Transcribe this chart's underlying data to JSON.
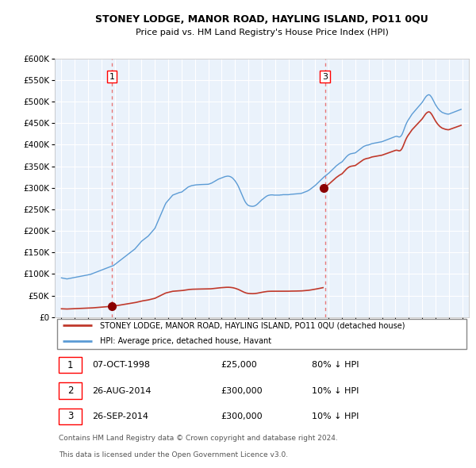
{
  "title": "STONEY LODGE, MANOR ROAD, HAYLING ISLAND, PO11 0QU",
  "subtitle": "Price paid vs. HM Land Registry's House Price Index (HPI)",
  "legend_line1": "STONEY LODGE, MANOR ROAD, HAYLING ISLAND, PO11 0QU (detached house)",
  "legend_line2": "HPI: Average price, detached house, Havant",
  "transactions": [
    {
      "num": 1,
      "date": "07-OCT-1998",
      "price": 25000,
      "x": 1998.77,
      "pct": "80% ↓ HPI"
    },
    {
      "num": 2,
      "date": "26-AUG-2014",
      "price": 300000,
      "x": 2014.65,
      "pct": "10% ↓ HPI"
    },
    {
      "num": 3,
      "date": "26-SEP-2014",
      "price": 300000,
      "x": 2014.73,
      "pct": "10% ↓ HPI"
    }
  ],
  "hpi_color": "#5B9BD5",
  "price_color": "#C0392B",
  "vline_color": "#E87878",
  "dot_color": "#8B0000",
  "background_color": "#FFFFFF",
  "chart_bg_color": "#EAF2FB",
  "grid_color": "#FFFFFF",
  "ylim": [
    0,
    600000
  ],
  "xlim": [
    1994.5,
    2025.5
  ],
  "yticks": [
    0,
    50000,
    100000,
    150000,
    200000,
    250000,
    300000,
    350000,
    400000,
    450000,
    500000,
    550000,
    600000
  ],
  "xticks": [
    1995,
    1996,
    1997,
    1998,
    1999,
    2000,
    2001,
    2002,
    2003,
    2004,
    2005,
    2006,
    2007,
    2008,
    2009,
    2010,
    2011,
    2012,
    2013,
    2014,
    2015,
    2016,
    2017,
    2018,
    2019,
    2020,
    2021,
    2022,
    2023,
    2024,
    2025
  ],
  "footer1": "Contains HM Land Registry data © Crown copyright and database right 2024.",
  "footer2": "This data is licensed under the Open Government Licence v3.0.",
  "hpi_data_monthly": [
    [
      1995.0,
      91000
    ],
    [
      1995.083,
      90500
    ],
    [
      1995.167,
      90000
    ],
    [
      1995.25,
      89500
    ],
    [
      1995.333,
      89000
    ],
    [
      1995.417,
      88500
    ],
    [
      1995.5,
      89000
    ],
    [
      1995.583,
      89500
    ],
    [
      1995.667,
      90000
    ],
    [
      1995.75,
      90500
    ],
    [
      1995.833,
      91000
    ],
    [
      1995.917,
      91500
    ],
    [
      1996.0,
      92000
    ],
    [
      1996.083,
      92500
    ],
    [
      1996.167,
      93000
    ],
    [
      1996.25,
      93500
    ],
    [
      1996.333,
      94000
    ],
    [
      1996.417,
      94500
    ],
    [
      1996.5,
      95000
    ],
    [
      1996.583,
      95500
    ],
    [
      1996.667,
      96000
    ],
    [
      1996.75,
      96500
    ],
    [
      1996.833,
      97000
    ],
    [
      1996.917,
      97500
    ],
    [
      1997.0,
      98000
    ],
    [
      1997.083,
      98500
    ],
    [
      1997.167,
      99000
    ],
    [
      1997.25,
      100000
    ],
    [
      1997.333,
      101000
    ],
    [
      1997.417,
      102000
    ],
    [
      1997.5,
      103000
    ],
    [
      1997.583,
      104000
    ],
    [
      1997.667,
      105000
    ],
    [
      1997.75,
      106000
    ],
    [
      1997.833,
      107000
    ],
    [
      1997.917,
      108000
    ],
    [
      1998.0,
      109000
    ],
    [
      1998.083,
      110000
    ],
    [
      1998.167,
      111000
    ],
    [
      1998.25,
      112000
    ],
    [
      1998.333,
      113000
    ],
    [
      1998.417,
      114000
    ],
    [
      1998.5,
      115000
    ],
    [
      1998.583,
      116000
    ],
    [
      1998.667,
      117000
    ],
    [
      1998.75,
      118000
    ],
    [
      1998.833,
      119000
    ],
    [
      1998.917,
      120000
    ],
    [
      1999.0,
      122000
    ],
    [
      1999.083,
      124000
    ],
    [
      1999.167,
      126000
    ],
    [
      1999.25,
      128000
    ],
    [
      1999.333,
      130000
    ],
    [
      1999.417,
      132000
    ],
    [
      1999.5,
      134000
    ],
    [
      1999.583,
      136000
    ],
    [
      1999.667,
      138000
    ],
    [
      1999.75,
      140000
    ],
    [
      1999.833,
      142000
    ],
    [
      1999.917,
      144000
    ],
    [
      2000.0,
      146000
    ],
    [
      2000.083,
      148000
    ],
    [
      2000.167,
      150000
    ],
    [
      2000.25,
      152000
    ],
    [
      2000.333,
      154000
    ],
    [
      2000.417,
      156000
    ],
    [
      2000.5,
      158000
    ],
    [
      2000.583,
      161000
    ],
    [
      2000.667,
      164000
    ],
    [
      2000.75,
      167000
    ],
    [
      2000.833,
      170000
    ],
    [
      2000.917,
      173000
    ],
    [
      2001.0,
      176000
    ],
    [
      2001.083,
      178000
    ],
    [
      2001.167,
      180000
    ],
    [
      2001.25,
      182000
    ],
    [
      2001.333,
      184000
    ],
    [
      2001.417,
      186000
    ],
    [
      2001.5,
      188000
    ],
    [
      2001.583,
      191000
    ],
    [
      2001.667,
      194000
    ],
    [
      2001.75,
      197000
    ],
    [
      2001.833,
      200000
    ],
    [
      2001.917,
      203000
    ],
    [
      2002.0,
      206000
    ],
    [
      2002.083,
      212000
    ],
    [
      2002.167,
      218000
    ],
    [
      2002.25,
      224000
    ],
    [
      2002.333,
      230000
    ],
    [
      2002.417,
      236000
    ],
    [
      2002.5,
      242000
    ],
    [
      2002.583,
      248000
    ],
    [
      2002.667,
      254000
    ],
    [
      2002.75,
      260000
    ],
    [
      2002.833,
      265000
    ],
    [
      2002.917,
      268000
    ],
    [
      2003.0,
      271000
    ],
    [
      2003.083,
      274000
    ],
    [
      2003.167,
      277000
    ],
    [
      2003.25,
      280000
    ],
    [
      2003.333,
      283000
    ],
    [
      2003.417,
      284000
    ],
    [
      2003.5,
      285000
    ],
    [
      2003.583,
      286000
    ],
    [
      2003.667,
      287000
    ],
    [
      2003.75,
      288000
    ],
    [
      2003.833,
      289000
    ],
    [
      2003.917,
      289500
    ],
    [
      2004.0,
      290000
    ],
    [
      2004.083,
      292000
    ],
    [
      2004.167,
      294000
    ],
    [
      2004.25,
      296000
    ],
    [
      2004.333,
      298000
    ],
    [
      2004.417,
      300000
    ],
    [
      2004.5,
      302000
    ],
    [
      2004.583,
      303000
    ],
    [
      2004.667,
      304000
    ],
    [
      2004.75,
      305000
    ],
    [
      2004.833,
      305500
    ],
    [
      2004.917,
      306000
    ],
    [
      2005.0,
      306500
    ],
    [
      2005.083,
      306800
    ],
    [
      2005.167,
      307000
    ],
    [
      2005.25,
      307200
    ],
    [
      2005.333,
      307400
    ],
    [
      2005.417,
      307500
    ],
    [
      2005.5,
      307600
    ],
    [
      2005.583,
      307700
    ],
    [
      2005.667,
      307800
    ],
    [
      2005.75,
      307900
    ],
    [
      2005.833,
      308000
    ],
    [
      2005.917,
      308100
    ],
    [
      2006.0,
      308200
    ],
    [
      2006.083,
      309000
    ],
    [
      2006.167,
      310000
    ],
    [
      2006.25,
      311000
    ],
    [
      2006.333,
      312500
    ],
    [
      2006.417,
      314000
    ],
    [
      2006.5,
      315500
    ],
    [
      2006.583,
      317000
    ],
    [
      2006.667,
      318500
    ],
    [
      2006.75,
      320000
    ],
    [
      2006.833,
      321000
    ],
    [
      2006.917,
      322000
    ],
    [
      2007.0,
      323000
    ],
    [
      2007.083,
      324000
    ],
    [
      2007.167,
      325000
    ],
    [
      2007.25,
      326000
    ],
    [
      2007.333,
      326500
    ],
    [
      2007.417,
      327000
    ],
    [
      2007.5,
      327000
    ],
    [
      2007.583,
      326500
    ],
    [
      2007.667,
      325500
    ],
    [
      2007.75,
      324000
    ],
    [
      2007.833,
      322000
    ],
    [
      2007.917,
      319000
    ],
    [
      2008.0,
      316000
    ],
    [
      2008.083,
      312000
    ],
    [
      2008.167,
      308000
    ],
    [
      2008.25,
      303000
    ],
    [
      2008.333,
      297000
    ],
    [
      2008.417,
      291000
    ],
    [
      2008.5,
      285000
    ],
    [
      2008.583,
      279000
    ],
    [
      2008.667,
      273000
    ],
    [
      2008.75,
      268000
    ],
    [
      2008.833,
      264000
    ],
    [
      2008.917,
      261000
    ],
    [
      2009.0,
      259000
    ],
    [
      2009.083,
      258000
    ],
    [
      2009.167,
      257500
    ],
    [
      2009.25,
      257000
    ],
    [
      2009.333,
      257000
    ],
    [
      2009.417,
      257500
    ],
    [
      2009.5,
      258500
    ],
    [
      2009.583,
      260000
    ],
    [
      2009.667,
      262000
    ],
    [
      2009.75,
      264500
    ],
    [
      2009.833,
      267000
    ],
    [
      2009.917,
      269500
    ],
    [
      2010.0,
      272000
    ],
    [
      2010.083,
      274000
    ],
    [
      2010.167,
      276000
    ],
    [
      2010.25,
      278000
    ],
    [
      2010.333,
      280000
    ],
    [
      2010.417,
      281500
    ],
    [
      2010.5,
      282500
    ],
    [
      2010.583,
      283000
    ],
    [
      2010.667,
      283500
    ],
    [
      2010.75,
      283500
    ],
    [
      2010.833,
      283500
    ],
    [
      2010.917,
      283000
    ],
    [
      2011.0,
      283000
    ],
    [
      2011.083,
      283000
    ],
    [
      2011.167,
      283000
    ],
    [
      2011.25,
      283000
    ],
    [
      2011.333,
      283000
    ],
    [
      2011.417,
      283500
    ],
    [
      2011.5,
      283500
    ],
    [
      2011.583,
      284000
    ],
    [
      2011.667,
      284000
    ],
    [
      2011.75,
      284000
    ],
    [
      2011.833,
      284000
    ],
    [
      2011.917,
      284000
    ],
    [
      2012.0,
      284000
    ],
    [
      2012.083,
      284500
    ],
    [
      2012.167,
      284800
    ],
    [
      2012.25,
      285000
    ],
    [
      2012.333,
      285000
    ],
    [
      2012.417,
      285200
    ],
    [
      2012.5,
      285500
    ],
    [
      2012.583,
      285700
    ],
    [
      2012.667,
      286000
    ],
    [
      2012.75,
      286200
    ],
    [
      2012.833,
      286500
    ],
    [
      2012.917,
      286800
    ],
    [
      2013.0,
      287500
    ],
    [
      2013.083,
      288500
    ],
    [
      2013.167,
      289500
    ],
    [
      2013.25,
      290500
    ],
    [
      2013.333,
      291500
    ],
    [
      2013.417,
      292500
    ],
    [
      2013.5,
      294000
    ],
    [
      2013.583,
      295500
    ],
    [
      2013.667,
      297500
    ],
    [
      2013.75,
      299500
    ],
    [
      2013.833,
      301500
    ],
    [
      2013.917,
      303500
    ],
    [
      2014.0,
      305500
    ],
    [
      2014.083,
      308000
    ],
    [
      2014.167,
      310500
    ],
    [
      2014.25,
      313000
    ],
    [
      2014.333,
      315500
    ],
    [
      2014.417,
      318000
    ],
    [
      2014.5,
      320500
    ],
    [
      2014.583,
      323000
    ],
    [
      2014.667,
      325500
    ],
    [
      2014.75,
      327500
    ],
    [
      2014.833,
      329500
    ],
    [
      2014.917,
      331500
    ],
    [
      2015.0,
      333500
    ],
    [
      2015.083,
      336000
    ],
    [
      2015.167,
      338500
    ],
    [
      2015.25,
      341000
    ],
    [
      2015.333,
      343500
    ],
    [
      2015.417,
      346000
    ],
    [
      2015.5,
      348500
    ],
    [
      2015.583,
      351000
    ],
    [
      2015.667,
      353000
    ],
    [
      2015.75,
      355000
    ],
    [
      2015.833,
      357000
    ],
    [
      2015.917,
      358500
    ],
    [
      2016.0,
      360000
    ],
    [
      2016.083,
      363000
    ],
    [
      2016.167,
      366000
    ],
    [
      2016.25,
      369000
    ],
    [
      2016.333,
      372000
    ],
    [
      2016.417,
      374500
    ],
    [
      2016.5,
      376500
    ],
    [
      2016.583,
      378000
    ],
    [
      2016.667,
      379000
    ],
    [
      2016.75,
      379500
    ],
    [
      2016.833,
      380000
    ],
    [
      2016.917,
      380500
    ],
    [
      2017.0,
      381000
    ],
    [
      2017.083,
      383000
    ],
    [
      2017.167,
      385000
    ],
    [
      2017.25,
      387000
    ],
    [
      2017.333,
      389000
    ],
    [
      2017.417,
      391000
    ],
    [
      2017.5,
      393000
    ],
    [
      2017.583,
      395000
    ],
    [
      2017.667,
      396500
    ],
    [
      2017.75,
      397500
    ],
    [
      2017.833,
      398500
    ],
    [
      2017.917,
      399000
    ],
    [
      2018.0,
      399500
    ],
    [
      2018.083,
      400500
    ],
    [
      2018.167,
      401500
    ],
    [
      2018.25,
      402500
    ],
    [
      2018.333,
      403000
    ],
    [
      2018.417,
      403500
    ],
    [
      2018.5,
      404000
    ],
    [
      2018.583,
      404500
    ],
    [
      2018.667,
      405000
    ],
    [
      2018.75,
      405500
    ],
    [
      2018.833,
      406000
    ],
    [
      2018.917,
      406500
    ],
    [
      2019.0,
      407000
    ],
    [
      2019.083,
      408000
    ],
    [
      2019.167,
      409000
    ],
    [
      2019.25,
      410000
    ],
    [
      2019.333,
      411000
    ],
    [
      2019.417,
      412000
    ],
    [
      2019.5,
      413000
    ],
    [
      2019.583,
      414000
    ],
    [
      2019.667,
      415000
    ],
    [
      2019.75,
      416000
    ],
    [
      2019.833,
      417000
    ],
    [
      2019.917,
      418000
    ],
    [
      2020.0,
      419000
    ],
    [
      2020.083,
      419500
    ],
    [
      2020.167,
      419000
    ],
    [
      2020.25,
      418000
    ],
    [
      2020.333,
      418000
    ],
    [
      2020.417,
      420000
    ],
    [
      2020.5,
      424000
    ],
    [
      2020.583,
      430000
    ],
    [
      2020.667,
      437000
    ],
    [
      2020.75,
      444000
    ],
    [
      2020.833,
      450000
    ],
    [
      2020.917,
      455000
    ],
    [
      2021.0,
      459000
    ],
    [
      2021.083,
      463000
    ],
    [
      2021.167,
      467000
    ],
    [
      2021.25,
      471000
    ],
    [
      2021.333,
      474000
    ],
    [
      2021.417,
      477000
    ],
    [
      2021.5,
      480000
    ],
    [
      2021.583,
      483000
    ],
    [
      2021.667,
      486000
    ],
    [
      2021.75,
      489000
    ],
    [
      2021.833,
      492000
    ],
    [
      2021.917,
      495000
    ],
    [
      2022.0,
      498000
    ],
    [
      2022.083,
      502000
    ],
    [
      2022.167,
      506000
    ],
    [
      2022.25,
      510000
    ],
    [
      2022.333,
      513000
    ],
    [
      2022.417,
      515000
    ],
    [
      2022.5,
      516000
    ],
    [
      2022.583,
      515000
    ],
    [
      2022.667,
      512000
    ],
    [
      2022.75,
      508000
    ],
    [
      2022.833,
      503000
    ],
    [
      2022.917,
      498000
    ],
    [
      2023.0,
      493000
    ],
    [
      2023.083,
      489000
    ],
    [
      2023.167,
      485000
    ],
    [
      2023.25,
      482000
    ],
    [
      2023.333,
      479000
    ],
    [
      2023.417,
      477000
    ],
    [
      2023.5,
      475000
    ],
    [
      2023.583,
      474000
    ],
    [
      2023.667,
      473000
    ],
    [
      2023.75,
      472000
    ],
    [
      2023.833,
      471500
    ],
    [
      2023.917,
      471000
    ],
    [
      2024.0,
      471000
    ],
    [
      2024.083,
      472000
    ],
    [
      2024.167,
      473000
    ],
    [
      2024.25,
      474000
    ],
    [
      2024.333,
      475000
    ],
    [
      2024.417,
      476000
    ],
    [
      2024.5,
      477000
    ],
    [
      2024.583,
      478000
    ],
    [
      2024.667,
      479000
    ],
    [
      2024.75,
      480000
    ],
    [
      2024.833,
      481000
    ],
    [
      2024.917,
      482000
    ]
  ]
}
